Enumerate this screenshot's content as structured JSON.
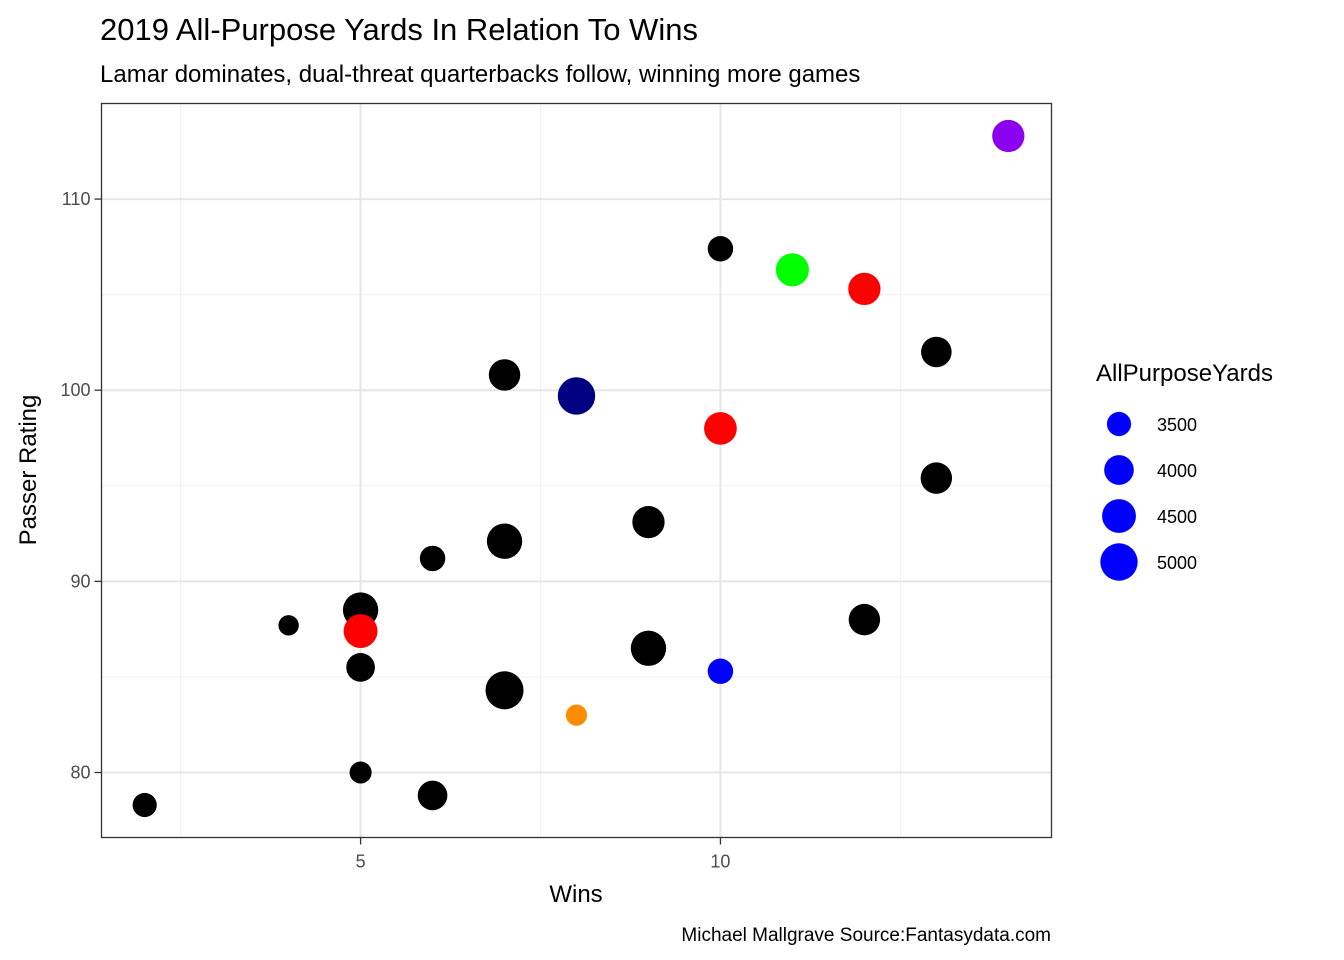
{
  "chart_data": {
    "type": "scatter",
    "title": "2019 All-Purpose Yards In Relation To Wins",
    "subtitle": "Lamar dominates, dual-threat quarterbacks follow, winning more games",
    "xlabel": "Wins",
    "ylabel": "Passer Rating",
    "caption": "Michael Mallgrave Source:Fantasydata.com",
    "xlim": [
      1.4,
      14.6
    ],
    "ylim": [
      76.6,
      115.0
    ],
    "x_ticks": [
      5,
      10
    ],
    "y_ticks": [
      80,
      90,
      100,
      110
    ],
    "grid": true,
    "legend": {
      "title": "AllPurposeYards",
      "position": "right",
      "color": "#0000ff",
      "entries": [
        {
          "label": "3500",
          "value": 3500
        },
        {
          "label": "4000",
          "value": 4000
        },
        {
          "label": "4500",
          "value": 4500
        },
        {
          "label": "5000",
          "value": 5000
        }
      ]
    },
    "size_domain": [
      3000,
      5250
    ],
    "points": [
      {
        "x": 14,
        "y": 113.3,
        "size": 4300,
        "color": "#8b00ee"
      },
      {
        "x": 10,
        "y": 107.4,
        "size": 3600,
        "color": "#000000"
      },
      {
        "x": 11,
        "y": 106.3,
        "size": 4400,
        "color": "#00ff00"
      },
      {
        "x": 12,
        "y": 105.3,
        "size": 4300,
        "color": "#ff0000"
      },
      {
        "x": 13,
        "y": 102.0,
        "size": 4100,
        "color": "#000000"
      },
      {
        "x": 7,
        "y": 100.8,
        "size": 4200,
        "color": "#000000"
      },
      {
        "x": 8,
        "y": 99.7,
        "size": 5000,
        "color": "#000080"
      },
      {
        "x": 10,
        "y": 98.0,
        "size": 4350,
        "color": "#ff0000"
      },
      {
        "x": 13,
        "y": 95.4,
        "size": 4200,
        "color": "#000000"
      },
      {
        "x": 9,
        "y": 93.1,
        "size": 4300,
        "color": "#000000"
      },
      {
        "x": 7,
        "y": 92.1,
        "size": 4700,
        "color": "#000000"
      },
      {
        "x": 6,
        "y": 91.2,
        "size": 3600,
        "color": "#000000"
      },
      {
        "x": 5,
        "y": 88.5,
        "size": 4700,
        "color": "#000000"
      },
      {
        "x": 12,
        "y": 88.0,
        "size": 4200,
        "color": "#000000"
      },
      {
        "x": 4,
        "y": 87.7,
        "size": 3250,
        "color": "#000000"
      },
      {
        "x": 5,
        "y": 87.4,
        "size": 4500,
        "color": "#ff0000"
      },
      {
        "x": 9,
        "y": 86.5,
        "size": 4700,
        "color": "#000000"
      },
      {
        "x": 5,
        "y": 85.5,
        "size": 3900,
        "color": "#000000"
      },
      {
        "x": 10,
        "y": 85.3,
        "size": 3600,
        "color": "#0000ff"
      },
      {
        "x": 7,
        "y": 84.3,
        "size": 5100,
        "color": "#000000"
      },
      {
        "x": 8,
        "y": 83.0,
        "size": 3300,
        "color": "#ff8c00"
      },
      {
        "x": 5,
        "y": 80.0,
        "size": 3350,
        "color": "#000000"
      },
      {
        "x": 6,
        "y": 78.8,
        "size": 4000,
        "color": "#000000"
      },
      {
        "x": 2,
        "y": 78.3,
        "size": 3500,
        "color": "#000000"
      }
    ]
  }
}
